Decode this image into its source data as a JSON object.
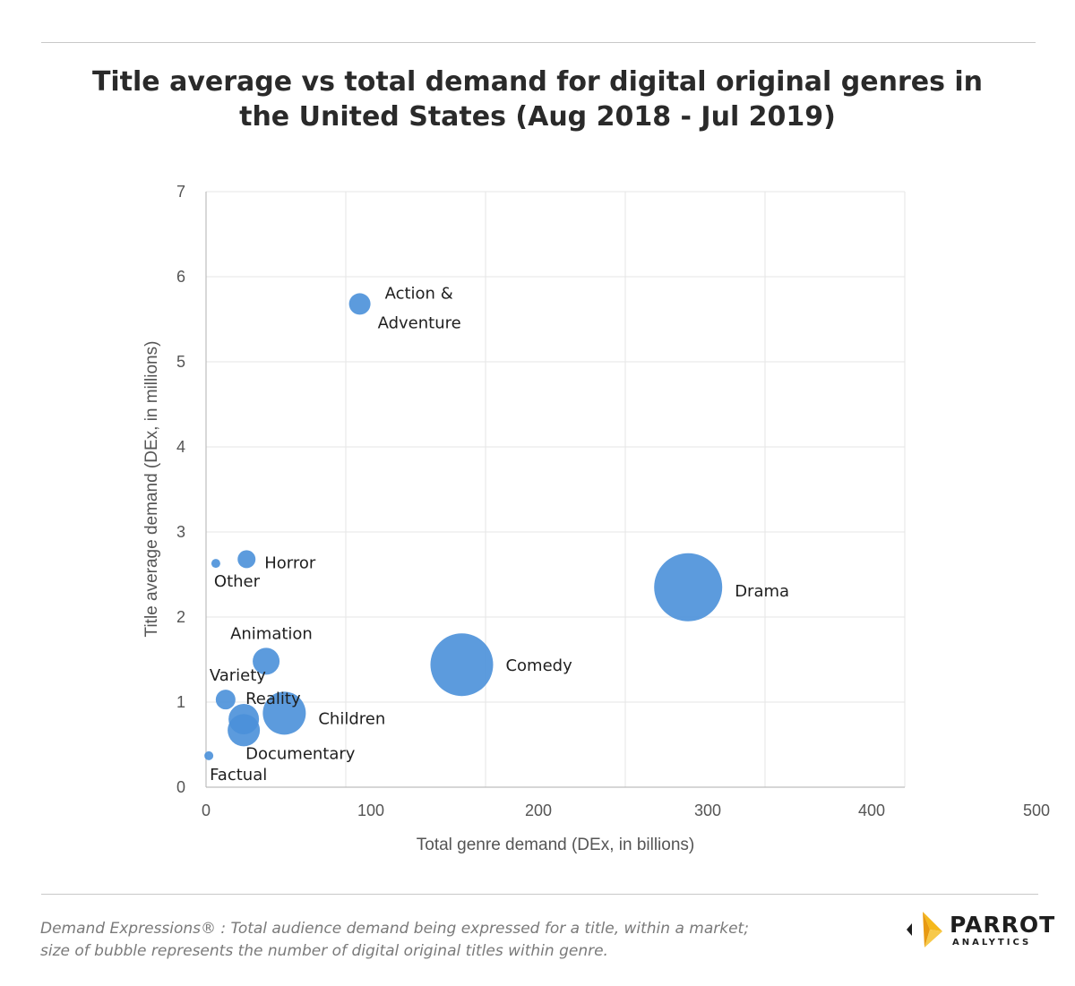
{
  "header": {
    "title_line1": "Title average vs total demand for digital original genres in",
    "title_line2": "the United States (Aug 2018 - Jul 2019)"
  },
  "chart_data": {
    "type": "scatter",
    "xlabel": "Total genre demand (DEx, in billions)",
    "ylabel": "Title average demand (DEx, in millions)",
    "xlim": [
      0,
      500
    ],
    "ylim": [
      0,
      7
    ],
    "x_ticks": [
      0,
      100,
      200,
      300,
      400,
      500
    ],
    "y_ticks": [
      0,
      1,
      2,
      3,
      4,
      5,
      6,
      7
    ],
    "grid": true,
    "bubble_color": "#4a90d9",
    "bubble_size_meaning": "number of digital original titles within genre",
    "points": [
      {
        "label": "Action &",
        "label2": "Adventure",
        "x": 110,
        "y": 5.68,
        "size": 12
      },
      {
        "label": "Horror",
        "label2": "",
        "x": 29,
        "y": 2.68,
        "size": 10
      },
      {
        "label": "Other",
        "label2": "",
        "x": 7,
        "y": 2.63,
        "size": 5
      },
      {
        "label": "Drama",
        "label2": "",
        "x": 345,
        "y": 2.35,
        "size": 38
      },
      {
        "label": "Animation",
        "label2": "",
        "x": 43,
        "y": 1.48,
        "size": 15
      },
      {
        "label": "Comedy",
        "label2": "",
        "x": 183,
        "y": 1.44,
        "size": 35
      },
      {
        "label": "Variety",
        "label2": "",
        "x": 14,
        "y": 1.03,
        "size": 11
      },
      {
        "label": "Reality",
        "label2": "",
        "x": 27,
        "y": 0.8,
        "size": 17
      },
      {
        "label": "Children",
        "label2": "",
        "x": 56,
        "y": 0.87,
        "size": 24
      },
      {
        "label": "Documentary",
        "label2": "",
        "x": 27,
        "y": 0.67,
        "size": 18
      },
      {
        "label": "Factual",
        "label2": "",
        "x": 2,
        "y": 0.37,
        "size": 5
      }
    ]
  },
  "footnote": {
    "line1": "Demand Expressions® :  Total audience demand being expressed for a title, within a market;",
    "line2": "size of bubble represents the number of digital original titles within genre."
  },
  "logo": {
    "word": "PARROT",
    "sub": "ANALYTICS",
    "color_primary": "#f5b81c",
    "color_dark": "#1e1e1e"
  }
}
